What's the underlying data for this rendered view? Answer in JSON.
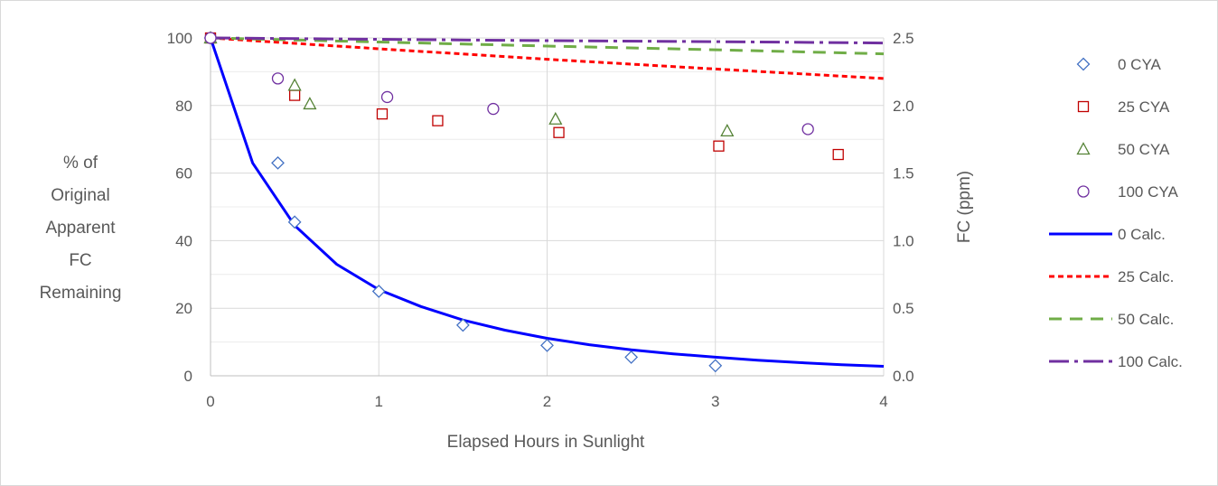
{
  "chart_data": {
    "type": "scatter",
    "title": "",
    "xlabel": "Elapsed Hours in Sunlight",
    "ylabel_lines": [
      "% of",
      "Original",
      "Apparent",
      "FC",
      "Remaining"
    ],
    "y2label": "FC (ppm)",
    "xlim": [
      0,
      4
    ],
    "ylim": [
      0,
      100
    ],
    "y2lim": [
      0,
      2.5
    ],
    "x_ticks": [
      "0",
      "1",
      "2",
      "3",
      "4"
    ],
    "y_ticks": [
      "0",
      "20",
      "40",
      "60",
      "80",
      "100"
    ],
    "y2_ticks": [
      "0.0",
      "0.5",
      "1.0",
      "1.5",
      "2.0",
      "2.5"
    ],
    "grid": true,
    "legend_position": "right",
    "series": [
      {
        "name": "0 CYA",
        "kind": "marker",
        "marker": "diamond",
        "color": "#4472C4",
        "x": [
          0,
          0.4,
          0.5,
          1.0,
          1.5,
          2.0,
          2.5,
          3.0
        ],
        "y": [
          100,
          63,
          45.5,
          25,
          15,
          9,
          5.5,
          3
        ]
      },
      {
        "name": "25 CYA",
        "kind": "marker",
        "marker": "square",
        "color": "#C00000",
        "x": [
          0,
          0.5,
          1.02,
          1.35,
          2.07,
          3.02,
          3.73
        ],
        "y": [
          100,
          83,
          77.5,
          75.5,
          72,
          68,
          65.5
        ]
      },
      {
        "name": "50 CYA",
        "kind": "marker",
        "marker": "triangle",
        "color": "#548235",
        "x": [
          0,
          0.5,
          0.59,
          2.05,
          3.07
        ],
        "y": [
          100,
          86,
          80.5,
          76,
          72.5
        ]
      },
      {
        "name": "100 CYA",
        "kind": "marker",
        "marker": "circle",
        "color": "#7030A0",
        "x": [
          0,
          0.4,
          1.05,
          1.68,
          3.55
        ],
        "y": [
          100,
          88,
          82.5,
          79,
          73
        ]
      },
      {
        "name": "0 Calc.",
        "kind": "line",
        "dash": "",
        "width": 3,
        "color": "#0000FF",
        "x": [
          0,
          0.25,
          0.5,
          0.75,
          1.0,
          1.25,
          1.5,
          1.75,
          2.0,
          2.25,
          2.5,
          2.75,
          3.0,
          3.25,
          3.5,
          3.75,
          4.0
        ],
        "y": [
          100,
          63,
          44.5,
          33,
          25.5,
          20.5,
          16.5,
          13.5,
          11.1,
          9.2,
          7.7,
          6.5,
          5.5,
          4.6,
          3.9,
          3.3,
          2.8
        ]
      },
      {
        "name": "25 Calc.",
        "kind": "line",
        "dash": "6,4",
        "width": 3,
        "color": "#FF0000",
        "x": [
          0,
          1,
          2,
          3,
          4
        ],
        "y": [
          100,
          96.8,
          93.7,
          90.8,
          88
        ]
      },
      {
        "name": "50 Calc.",
        "kind": "line",
        "dash": "14,9",
        "width": 3,
        "color": "#70AD47",
        "x": [
          0,
          1,
          2,
          3,
          4
        ],
        "y": [
          100,
          98.8,
          97.6,
          96.5,
          95.3
        ]
      },
      {
        "name": "100 Calc.",
        "kind": "line",
        "dash": "22,6,4,6",
        "width": 3,
        "color": "#7030A0",
        "x": [
          0,
          1,
          2,
          3,
          4
        ],
        "y": [
          100,
          99.6,
          99.2,
          98.9,
          98.5
        ]
      }
    ]
  }
}
